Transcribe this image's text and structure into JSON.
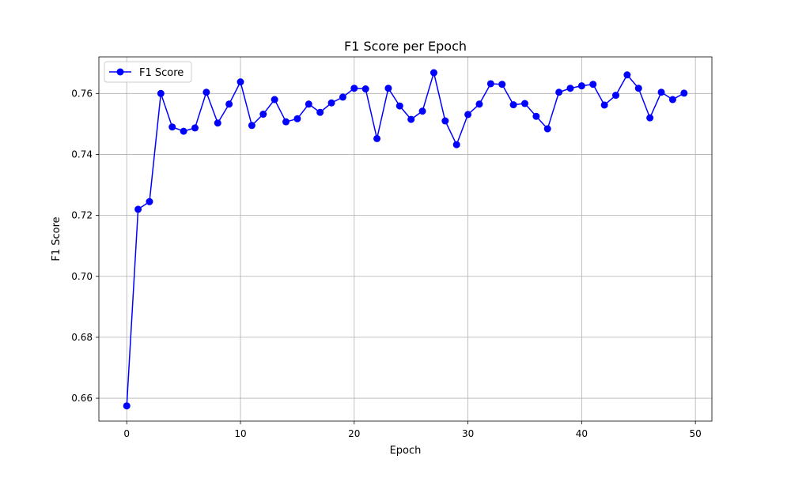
{
  "chart_data": {
    "type": "line",
    "title": "F1 Score per Epoch",
    "xlabel": "Epoch",
    "ylabel": "F1 Score",
    "xlim": [
      -2.45,
      51.45
    ],
    "ylim": [
      0.6525,
      0.772
    ],
    "xticks": [
      0,
      10,
      20,
      30,
      40,
      50
    ],
    "yticks": [
      0.66,
      0.68,
      0.7,
      0.72,
      0.74,
      0.76
    ],
    "ytick_labels": [
      "0.66",
      "0.68",
      "0.70",
      "0.72",
      "0.74",
      "0.76"
    ],
    "grid": true,
    "legend_position": "upper left",
    "series": [
      {
        "name": "F1 Score",
        "color": "#0000ff",
        "marker": "circle",
        "x": [
          0,
          1,
          2,
          3,
          4,
          5,
          6,
          7,
          8,
          9,
          10,
          11,
          12,
          13,
          14,
          15,
          16,
          17,
          18,
          19,
          20,
          21,
          22,
          23,
          24,
          25,
          26,
          27,
          28,
          29,
          30,
          31,
          32,
          33,
          34,
          35,
          36,
          37,
          38,
          39,
          40,
          41,
          42,
          43,
          44,
          45,
          46,
          47,
          48,
          49
        ],
        "values": [
          0.6575,
          0.722,
          0.7245,
          0.76,
          0.749,
          0.7476,
          0.7487,
          0.7604,
          0.7503,
          0.7565,
          0.7638,
          0.7495,
          0.7532,
          0.758,
          0.7507,
          0.7517,
          0.7565,
          0.7538,
          0.7569,
          0.7588,
          0.7617,
          0.7615,
          0.7452,
          0.7617,
          0.7559,
          0.7515,
          0.7542,
          0.7668,
          0.751,
          0.7432,
          0.7531,
          0.7565,
          0.7632,
          0.763,
          0.7563,
          0.7567,
          0.7525,
          0.7484,
          0.7604,
          0.7617,
          0.7625,
          0.763,
          0.7562,
          0.7594,
          0.7661,
          0.7617,
          0.752,
          0.7604,
          0.758,
          0.7601
        ]
      }
    ]
  }
}
